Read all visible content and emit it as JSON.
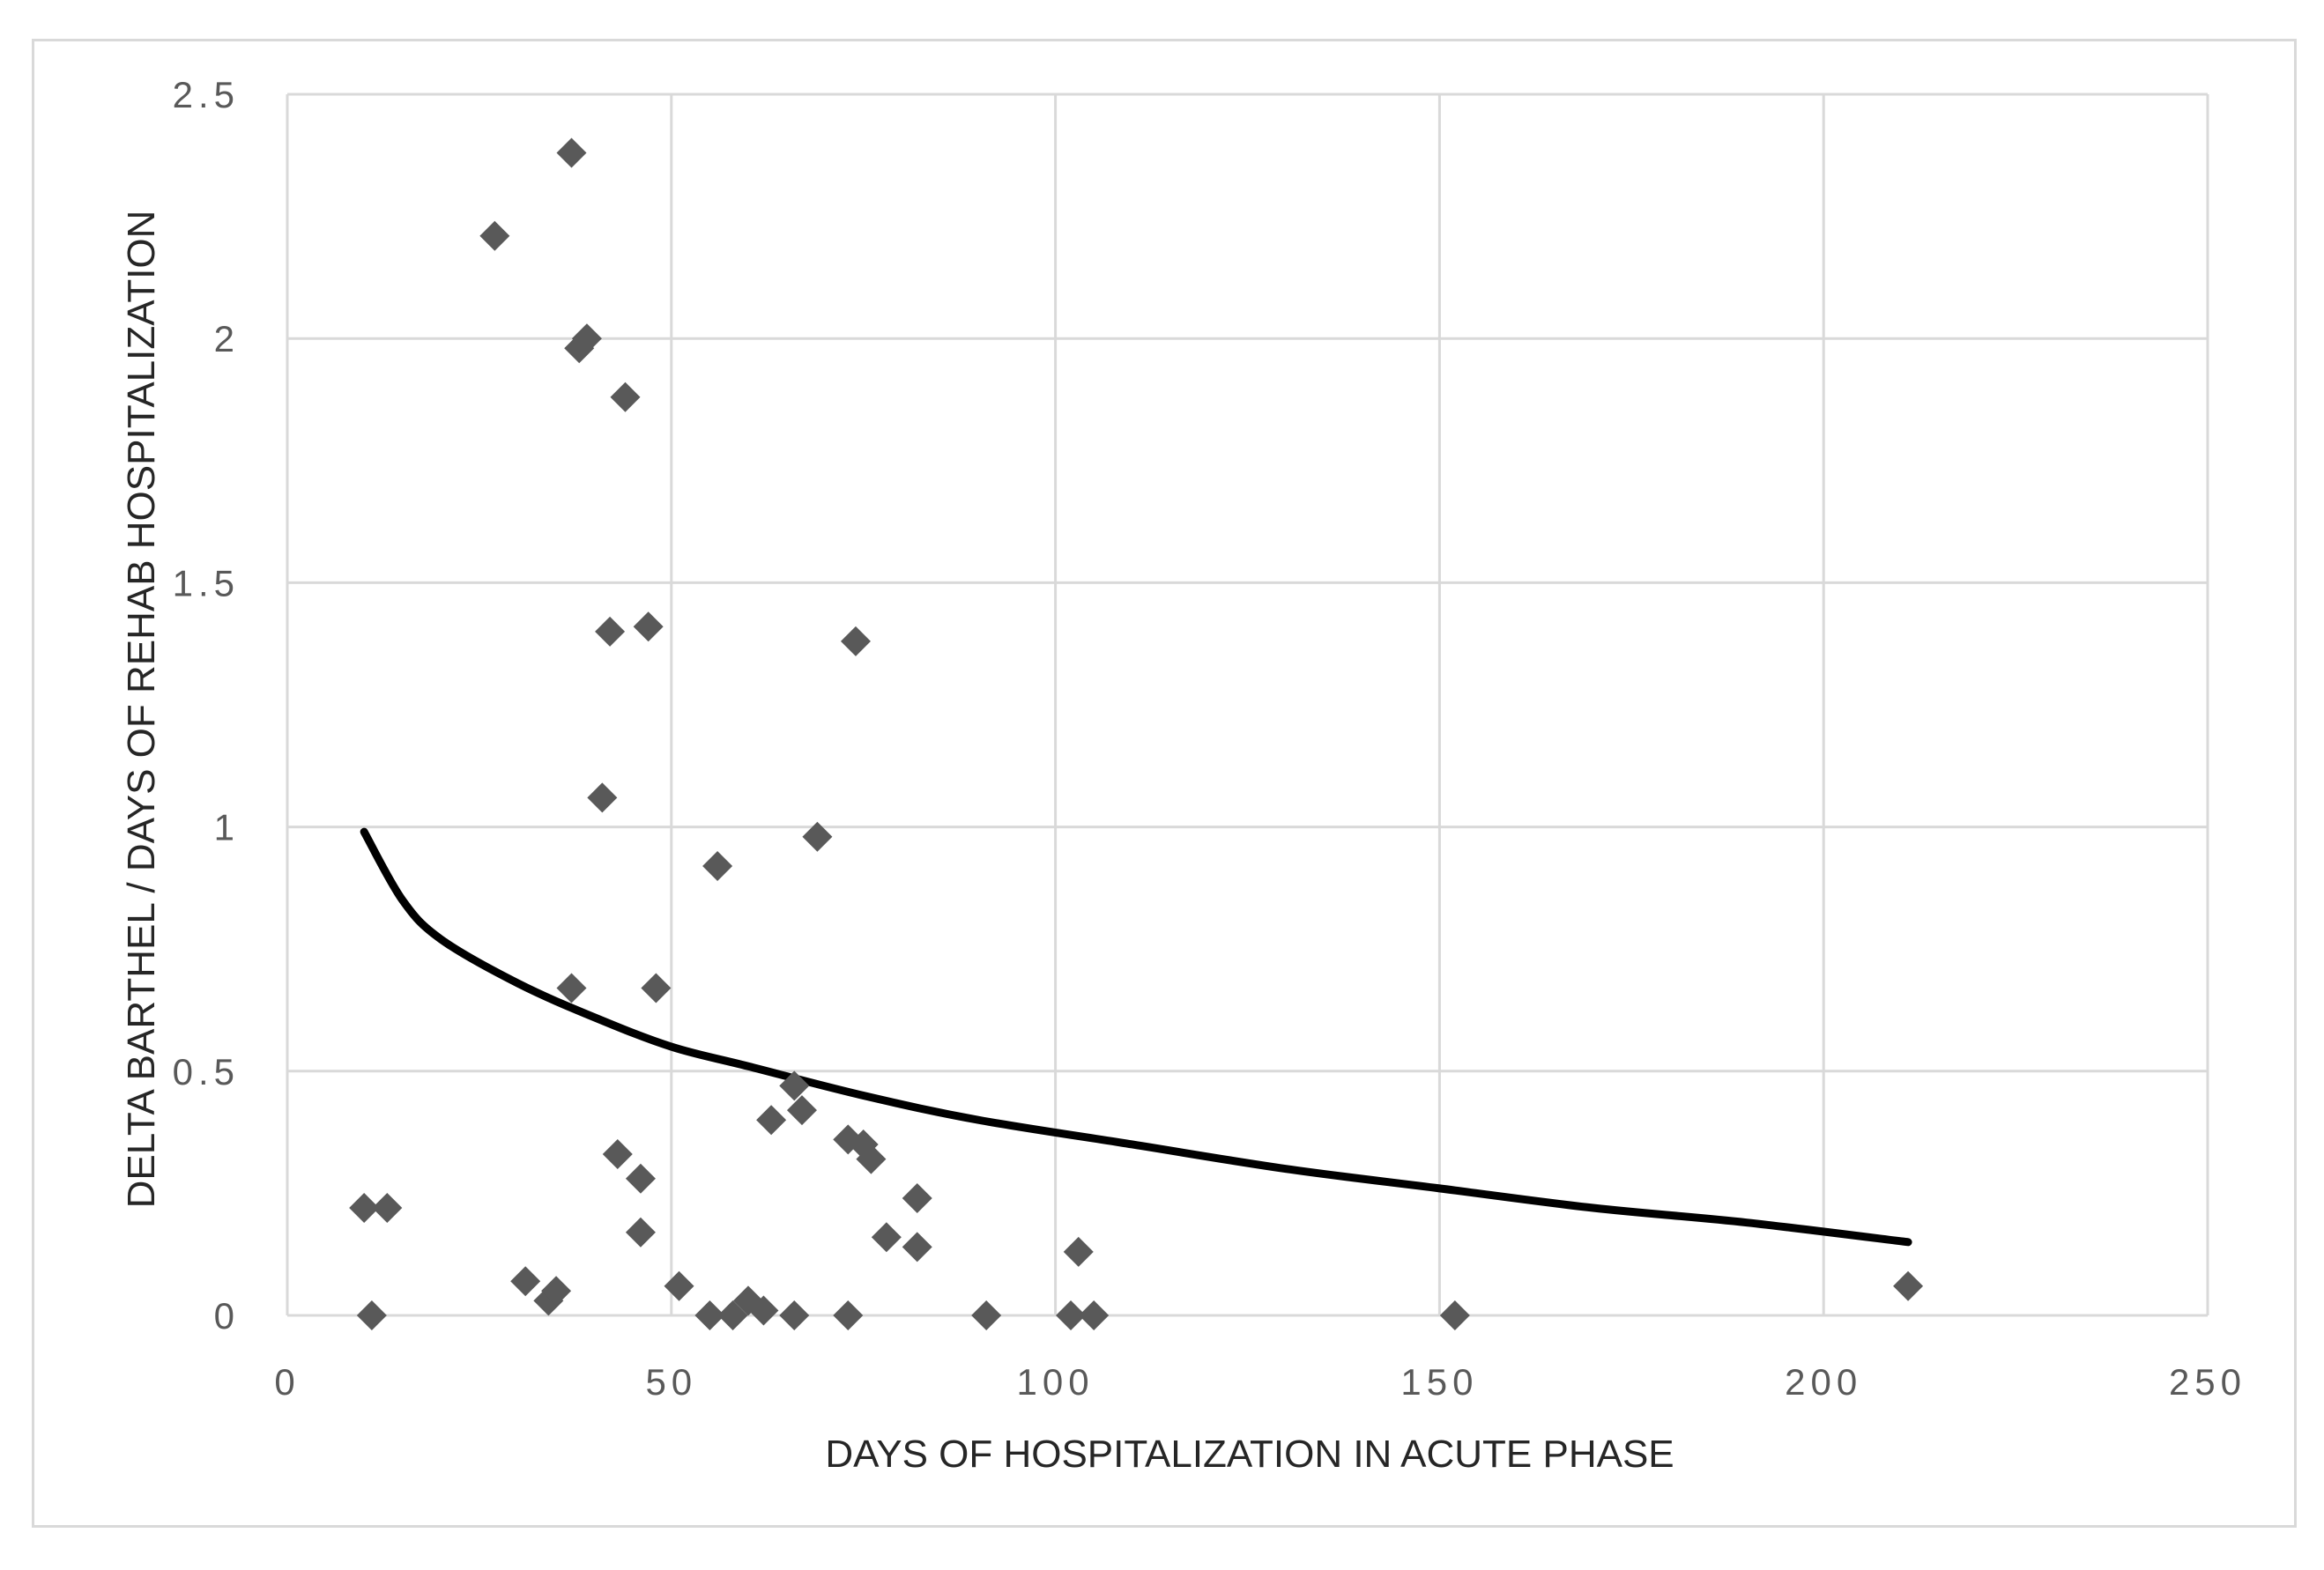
{
  "chart_data": {
    "type": "scatter",
    "title": "",
    "xlabel": "DAYS OF HOSPITALIZATION IN ACUTE PHASE",
    "ylabel": "DELTA  BARTHEL  / DAYS OF REHAB  HOSPITALIZATION",
    "xlim": [
      0,
      250
    ],
    "ylim": [
      0,
      2.5
    ],
    "x_ticks": [
      "0",
      "50",
      "100",
      "150",
      "200",
      "250"
    ],
    "y_ticks": [
      "0",
      "0.5",
      "1",
      "1.5",
      "2",
      "2.5"
    ],
    "grid": true,
    "legend": "none",
    "marker": "diamond",
    "marker_color": "#595959",
    "trend_color": "#000000",
    "grid_color": "#d9d9d9",
    "points": [
      {
        "x": 10,
        "y": 0.22
      },
      {
        "x": 11,
        "y": 0.0
      },
      {
        "x": 13,
        "y": 0.22
      },
      {
        "x": 27,
        "y": 2.21
      },
      {
        "x": 31,
        "y": 0.07
      },
      {
        "x": 34,
        "y": 0.03
      },
      {
        "x": 35,
        "y": 0.05
      },
      {
        "x": 37,
        "y": 2.38
      },
      {
        "x": 37,
        "y": 0.67
      },
      {
        "x": 38,
        "y": 1.98
      },
      {
        "x": 39,
        "y": 2.0
      },
      {
        "x": 41,
        "y": 1.06
      },
      {
        "x": 42,
        "y": 1.4
      },
      {
        "x": 43,
        "y": 0.33
      },
      {
        "x": 44,
        "y": 1.88
      },
      {
        "x": 46,
        "y": 0.28
      },
      {
        "x": 46,
        "y": 0.17
      },
      {
        "x": 47,
        "y": 1.41
      },
      {
        "x": 48,
        "y": 0.67
      },
      {
        "x": 51,
        "y": 0.06
      },
      {
        "x": 55,
        "y": 0.0
      },
      {
        "x": 56,
        "y": 0.92
      },
      {
        "x": 58,
        "y": 0.0
      },
      {
        "x": 60,
        "y": 0.03
      },
      {
        "x": 62,
        "y": 0.01
      },
      {
        "x": 63,
        "y": 0.4
      },
      {
        "x": 66,
        "y": 0.0
      },
      {
        "x": 66,
        "y": 0.47
      },
      {
        "x": 67,
        "y": 0.42
      },
      {
        "x": 69,
        "y": 0.98
      },
      {
        "x": 73,
        "y": 0.0
      },
      {
        "x": 73,
        "y": 0.36
      },
      {
        "x": 74,
        "y": 1.38
      },
      {
        "x": 75,
        "y": 0.35
      },
      {
        "x": 76,
        "y": 0.32
      },
      {
        "x": 78,
        "y": 0.16
      },
      {
        "x": 82,
        "y": 0.24
      },
      {
        "x": 82,
        "y": 0.14
      },
      {
        "x": 91,
        "y": 0.0
      },
      {
        "x": 102,
        "y": 0.0
      },
      {
        "x": 103,
        "y": 0.13
      },
      {
        "x": 105,
        "y": 0.0
      },
      {
        "x": 152,
        "y": 0.0
      },
      {
        "x": 211,
        "y": 0.06
      }
    ],
    "trend_line": {
      "type": "logarithmic",
      "x_range": [
        10,
        211
      ],
      "points": [
        {
          "x": 10,
          "y": 0.99
        },
        {
          "x": 15,
          "y": 0.85
        },
        {
          "x": 20,
          "y": 0.77
        },
        {
          "x": 30,
          "y": 0.68
        },
        {
          "x": 40,
          "y": 0.61
        },
        {
          "x": 50,
          "y": 0.55
        },
        {
          "x": 60,
          "y": 0.51
        },
        {
          "x": 75,
          "y": 0.45
        },
        {
          "x": 90,
          "y": 0.4
        },
        {
          "x": 110,
          "y": 0.35
        },
        {
          "x": 130,
          "y": 0.3
        },
        {
          "x": 150,
          "y": 0.26
        },
        {
          "x": 170,
          "y": 0.22
        },
        {
          "x": 190,
          "y": 0.19
        },
        {
          "x": 211,
          "y": 0.15
        }
      ]
    }
  }
}
